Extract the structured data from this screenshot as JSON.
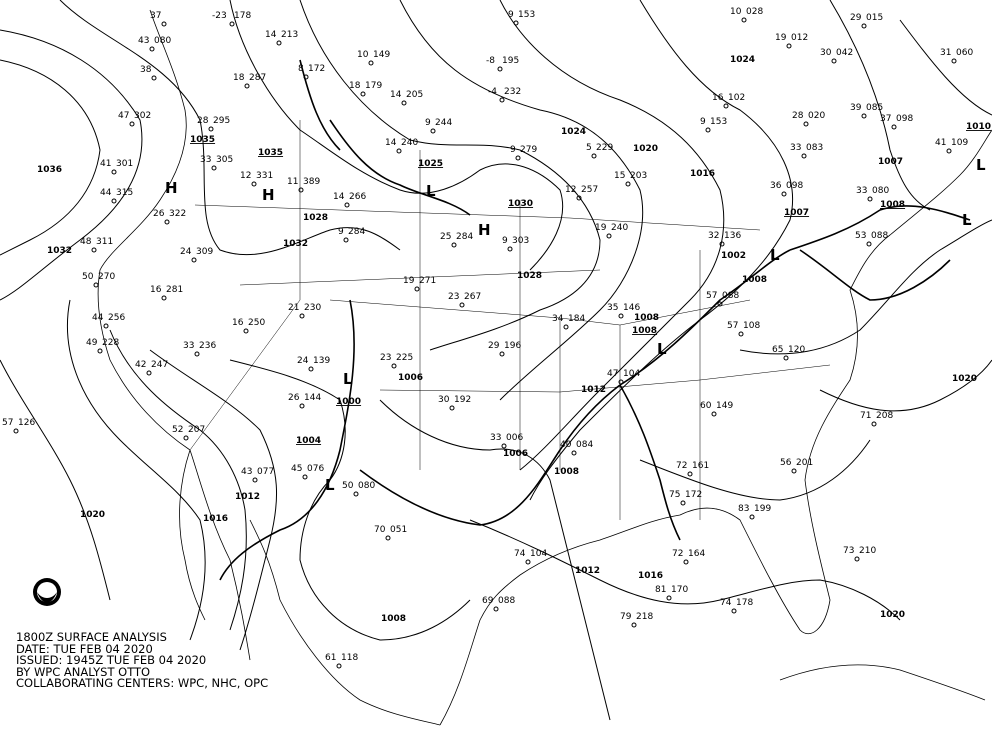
{
  "caption": {
    "line1": "1800Z SURFACE ANALYSIS",
    "line2": "DATE: TUE FEB 04 2020",
    "line3": "ISSUED: 1945Z TUE FEB 04 2020",
    "line4": "BY WPC ANALYST OTTO",
    "line5": "COLLABORATING CENTERS: WPC, NHC, OPC"
  },
  "logo": {
    "name": "noaa-logo-icon",
    "text": "NOAA"
  },
  "pressure_centers": [
    {
      "type": "H",
      "value": "1035"
    },
    {
      "type": "H",
      "value": "1035"
    },
    {
      "type": "H",
      "value": "1030"
    },
    {
      "type": "L",
      "value": "1025"
    },
    {
      "type": "L",
      "value": "1004"
    },
    {
      "type": "L",
      "value": "1000"
    },
    {
      "type": "L",
      "value": "1007"
    },
    {
      "type": "L",
      "value": "1008"
    },
    {
      "type": "L",
      "value": "1008"
    },
    {
      "type": "L",
      "value": "1010"
    }
  ],
  "isobar_labels": [
    "1036",
    "1032",
    "1020",
    "1016",
    "1012",
    "1008",
    "1012",
    "1016",
    "1020",
    "1020",
    "1024",
    "1020",
    "1016",
    "1007",
    "1028",
    "1028",
    "1032",
    "1006",
    "1006",
    "1008",
    "1012",
    "1008",
    "1002",
    "1008",
    "1024"
  ],
  "stations": [
    {
      "t": "37",
      "p": ""
    },
    {
      "t": "-23",
      "p": "178"
    },
    {
      "t": "43",
      "p": "080"
    },
    {
      "t": "38",
      "p": ""
    },
    {
      "t": "47",
      "p": "302"
    },
    {
      "t": "41",
      "p": "301"
    },
    {
      "t": "44",
      "p": "315"
    },
    {
      "t": "48",
      "p": "311"
    },
    {
      "t": "50",
      "p": "270"
    },
    {
      "t": "44",
      "p": "256"
    },
    {
      "t": "49",
      "p": "228"
    },
    {
      "t": "42",
      "p": "247"
    },
    {
      "t": "57",
      "p": "126"
    },
    {
      "t": "52",
      "p": "207"
    },
    {
      "t": "43",
      "p": "077"
    },
    {
      "t": "45",
      "p": "076"
    },
    {
      "t": "50",
      "p": "080"
    },
    {
      "t": "70",
      "p": "051"
    },
    {
      "t": "33",
      "p": "236"
    },
    {
      "t": "26",
      "p": "322"
    },
    {
      "t": "24",
      "p": "309"
    },
    {
      "t": "16",
      "p": "281"
    },
    {
      "t": "16",
      "p": "250"
    },
    {
      "t": "21",
      "p": "230"
    },
    {
      "t": "24",
      "p": "139"
    },
    {
      "t": "26",
      "p": "144"
    },
    {
      "t": "14",
      "p": "266"
    },
    {
      "t": "9",
      "p": "284"
    },
    {
      "t": "25",
      "p": "284"
    },
    {
      "t": "9",
      "p": "303"
    },
    {
      "t": "19",
      "p": "271"
    },
    {
      "t": "23",
      "p": "267"
    },
    {
      "t": "29",
      "p": "196"
    },
    {
      "t": "23",
      "p": "225"
    },
    {
      "t": "30",
      "p": "192"
    },
    {
      "t": "33",
      "p": "006"
    },
    {
      "t": "34",
      "p": "184"
    },
    {
      "t": "35",
      "p": "146"
    },
    {
      "t": "47",
      "p": "104"
    },
    {
      "t": "40",
      "p": "084"
    },
    {
      "t": "57",
      "p": "088"
    },
    {
      "t": "57",
      "p": "108"
    },
    {
      "t": "65",
      "p": "120"
    },
    {
      "t": "60",
      "p": "149"
    },
    {
      "t": "72",
      "p": "161"
    },
    {
      "t": "75",
      "p": "172"
    },
    {
      "t": "83",
      "p": "199"
    },
    {
      "t": "56",
      "p": "201"
    },
    {
      "t": "71",
      "p": "208"
    },
    {
      "t": "73",
      "p": "210"
    },
    {
      "t": "74",
      "p": "104"
    },
    {
      "t": "61",
      "p": "118"
    },
    {
      "t": "69",
      "p": "088"
    },
    {
      "t": "79",
      "p": "218"
    },
    {
      "t": "74",
      "p": "178"
    },
    {
      "t": "81",
      "p": "170"
    },
    {
      "t": "72",
      "p": "164"
    },
    {
      "t": "14",
      "p": "240"
    },
    {
      "t": "9",
      "p": "244"
    },
    {
      "t": "9",
      "p": "279"
    },
    {
      "t": "5",
      "p": "229"
    },
    {
      "t": "12",
      "p": "257"
    },
    {
      "t": "15",
      "p": "203"
    },
    {
      "t": "19",
      "p": "240"
    },
    {
      "t": "36",
      "p": "098"
    },
    {
      "t": "32",
      "p": "136"
    },
    {
      "t": "33",
      "p": "083"
    },
    {
      "t": "28",
      "p": "020"
    },
    {
      "t": "30",
      "p": "042"
    },
    {
      "t": "41",
      "p": "109"
    },
    {
      "t": "33",
      "p": "080"
    },
    {
      "t": "53",
      "p": "088"
    },
    {
      "t": "10",
      "p": "028"
    },
    {
      "t": "19",
      "p": "012"
    },
    {
      "t": "9",
      "p": "153"
    },
    {
      "t": "-8",
      "p": "195"
    },
    {
      "t": "-4",
      "p": "232"
    },
    {
      "t": "14",
      "p": "205"
    },
    {
      "t": "10",
      "p": "149"
    },
    {
      "t": "18",
      "p": "179"
    },
    {
      "t": "8",
      "p": "172"
    },
    {
      "t": "14",
      "p": "213"
    },
    {
      "t": "18",
      "p": "287"
    },
    {
      "t": "28",
      "p": "295"
    },
    {
      "t": "33",
      "p": "305"
    },
    {
      "t": "12",
      "p": "331"
    },
    {
      "t": "11",
      "p": "389"
    },
    {
      "t": "16",
      "p": "102"
    },
    {
      "t": "9",
      "p": "153"
    },
    {
      "t": "29",
      "p": "015"
    },
    {
      "t": "31",
      "p": "060"
    },
    {
      "t": "37",
      "p": "098"
    },
    {
      "t": "39",
      "p": "085"
    }
  ]
}
